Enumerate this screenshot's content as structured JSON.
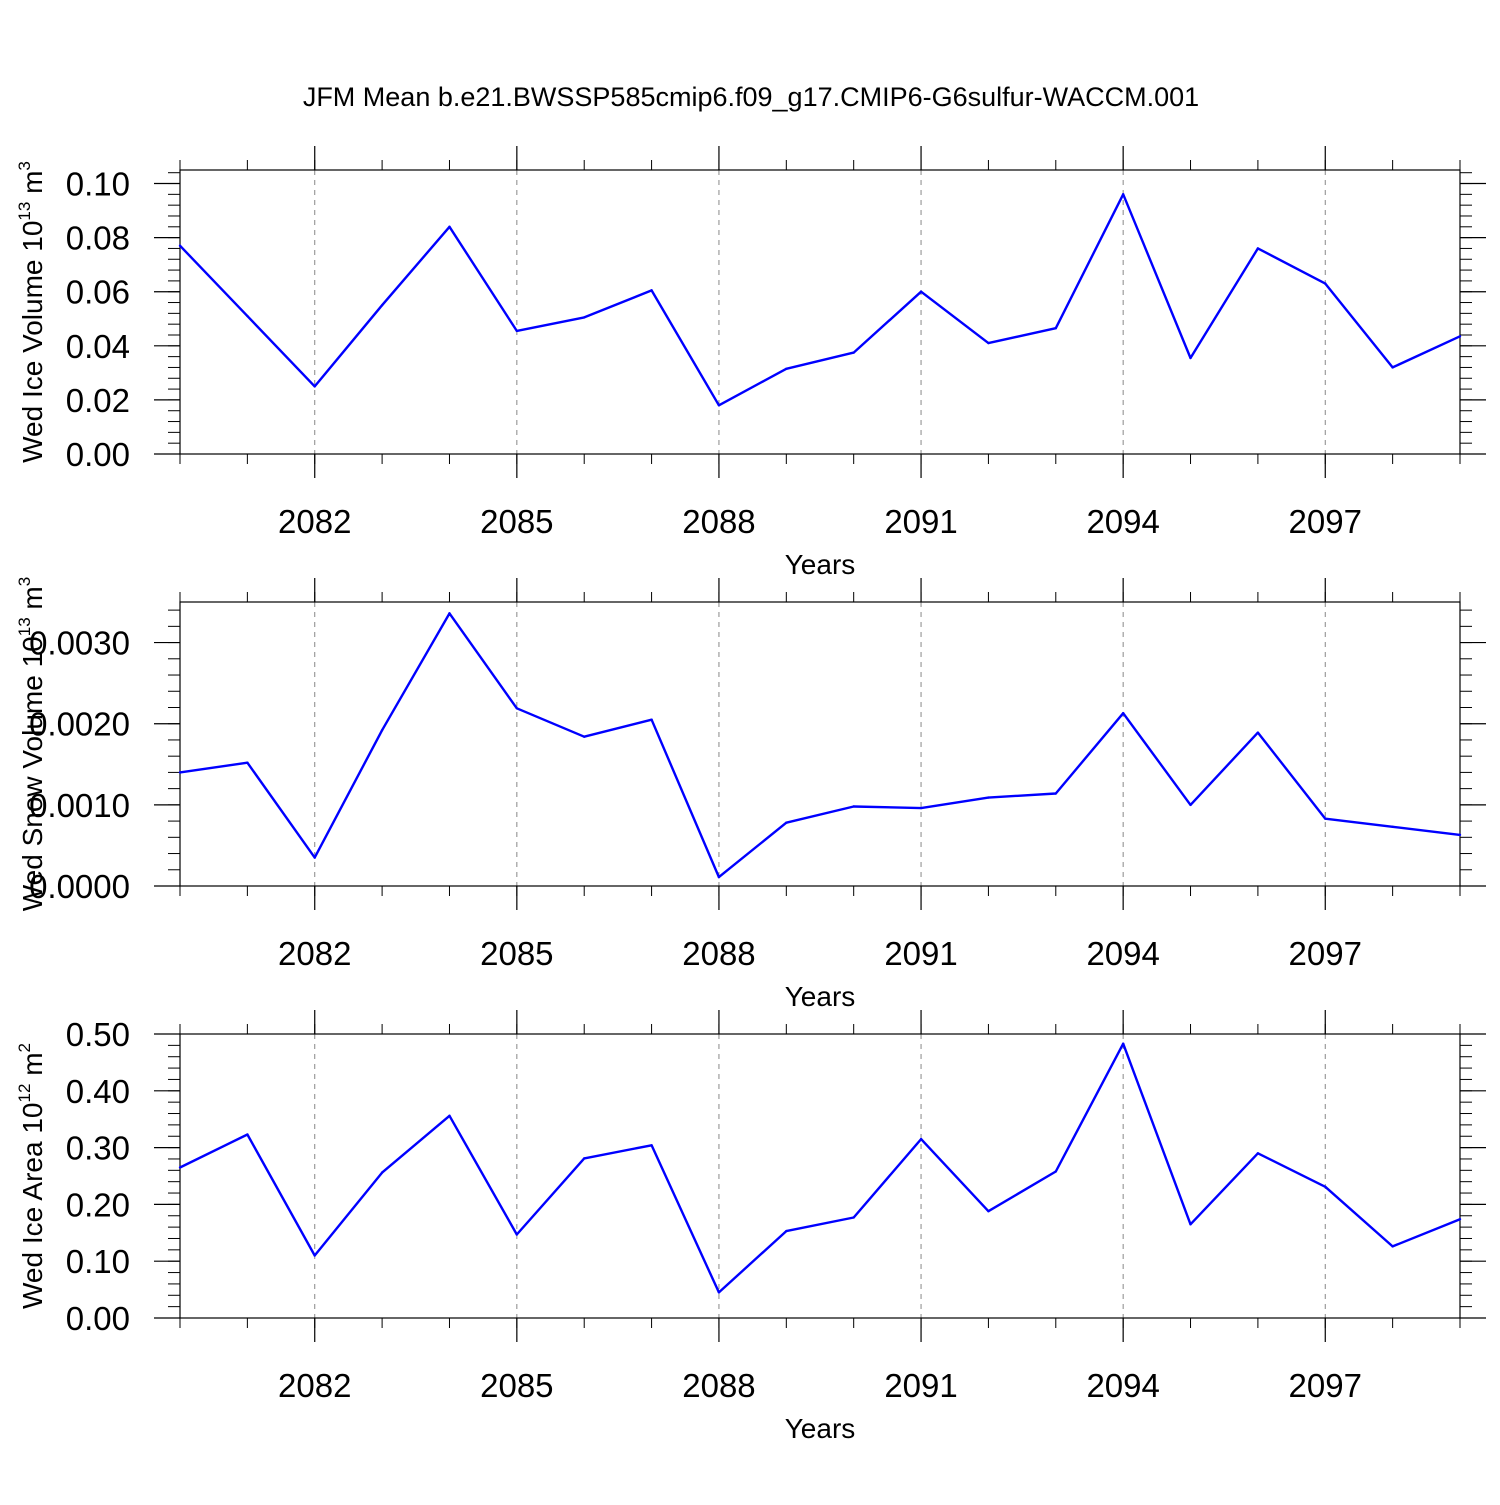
{
  "title": "JFM Mean b.e21.BWSSP585cmip6.f09_g17.CMIP6-G6sulfur-WACCM.001",
  "colors": {
    "line": "#0000ff",
    "axis": "#000000",
    "grid": "#888888"
  },
  "chart_data": [
    {
      "type": "line",
      "ylabel": "Wed Ice Volume 10",
      "ylabel_exponent": "13",
      "ylabel_unit": " m",
      "ylabel_unit_exponent": "3",
      "xlabel": "Years",
      "xlim": [
        2080,
        2099
      ],
      "ylim": [
        0,
        0.105
      ],
      "y_ticks": [
        0,
        0.02,
        0.04,
        0.06,
        0.08,
        0.1
      ],
      "y_tick_labels": [
        "0.00",
        "0.02",
        "0.04",
        "0.06",
        "0.08",
        "0.10"
      ],
      "x_ticks": [
        2082,
        2085,
        2088,
        2091,
        2094,
        2097
      ],
      "x_tick_labels": [
        "2082",
        "2085",
        "2088",
        "2091",
        "2094",
        "2097"
      ],
      "x": [
        2080,
        2081,
        2082,
        2083,
        2084,
        2085,
        2086,
        2087,
        2088,
        2089,
        2090,
        2091,
        2092,
        2093,
        2094,
        2095,
        2096,
        2097,
        2098,
        2099
      ],
      "values": [
        0.077,
        0.051,
        0.025,
        0.055,
        0.084,
        0.0455,
        0.0505,
        0.0605,
        0.018,
        0.0315,
        0.0375,
        0.06,
        0.041,
        0.0465,
        0.096,
        0.0355,
        0.076,
        0.063,
        0.032,
        0.0435
      ]
    },
    {
      "type": "line",
      "ylabel": "Wed Snow Volume 10",
      "ylabel_exponent": "13",
      "ylabel_unit": " m",
      "ylabel_unit_exponent": "3",
      "xlabel": "Years",
      "xlim": [
        2080,
        2099
      ],
      "ylim": [
        0,
        0.0035
      ],
      "y_ticks": [
        0,
        0.001,
        0.002,
        0.003
      ],
      "y_tick_labels": [
        "0.0000",
        "0.0010",
        "0.0020",
        "0.0030"
      ],
      "x_ticks": [
        2082,
        2085,
        2088,
        2091,
        2094,
        2097
      ],
      "x_tick_labels": [
        "2082",
        "2085",
        "2088",
        "2091",
        "2094",
        "2097"
      ],
      "x": [
        2080,
        2081,
        2082,
        2083,
        2084,
        2085,
        2086,
        2087,
        2088,
        2089,
        2090,
        2091,
        2092,
        2093,
        2094,
        2095,
        2096,
        2097,
        2098,
        2099
      ],
      "values": [
        0.0014,
        0.00152,
        0.00035,
        0.00192,
        0.00336,
        0.00219,
        0.00184,
        0.00205,
        0.00011,
        0.00078,
        0.00098,
        0.00096,
        0.00109,
        0.00114,
        0.00213,
        0.001,
        0.00189,
        0.00083,
        0.00073,
        0.00063
      ]
    },
    {
      "type": "line",
      "ylabel": "Wed Ice Area 10",
      "ylabel_exponent": "12",
      "ylabel_unit": " m",
      "ylabel_unit_exponent": "2",
      "xlabel": "Years",
      "xlim": [
        2080,
        2099
      ],
      "ylim": [
        0,
        0.5
      ],
      "y_ticks": [
        0,
        0.1,
        0.2,
        0.3,
        0.4,
        0.5
      ],
      "y_tick_labels": [
        "0.00",
        "0.10",
        "0.20",
        "0.30",
        "0.40",
        "0.50"
      ],
      "x_ticks": [
        2082,
        2085,
        2088,
        2091,
        2094,
        2097
      ],
      "x_tick_labels": [
        "2082",
        "2085",
        "2088",
        "2091",
        "2094",
        "2097"
      ],
      "x": [
        2080,
        2081,
        2082,
        2083,
        2084,
        2085,
        2086,
        2087,
        2088,
        2089,
        2090,
        2091,
        2092,
        2093,
        2094,
        2095,
        2096,
        2097,
        2098,
        2099
      ],
      "values": [
        0.265,
        0.323,
        0.11,
        0.256,
        0.356,
        0.147,
        0.281,
        0.304,
        0.045,
        0.153,
        0.177,
        0.315,
        0.188,
        0.258,
        0.483,
        0.165,
        0.29,
        0.231,
        0.126,
        0.174
      ]
    }
  ]
}
